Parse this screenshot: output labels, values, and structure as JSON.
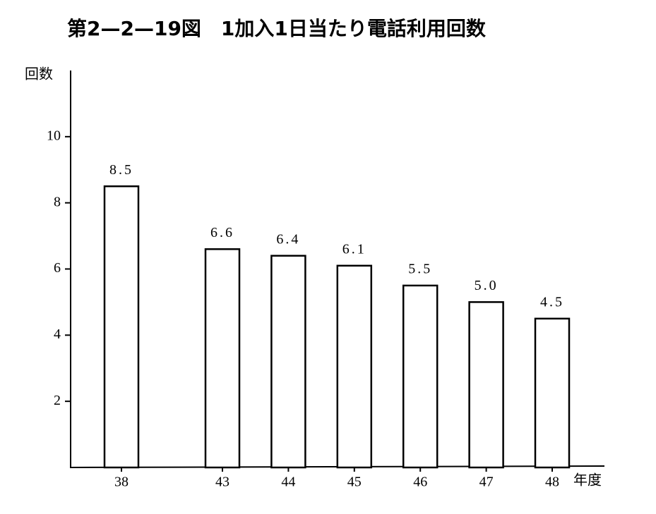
{
  "chart_data": {
    "type": "bar",
    "title": "第2—2—19図　1加入1日当たり電話利用回数",
    "y_label": "回数",
    "x_label": "年度",
    "categories": [
      "38",
      "43",
      "44",
      "45",
      "46",
      "47",
      "48"
    ],
    "values": [
      8.5,
      6.6,
      6.4,
      6.1,
      5.5,
      5.0,
      4.5
    ],
    "value_labels": [
      "8.5",
      "6.6",
      "6.4",
      "6.1",
      "5.5",
      "5.0",
      "4.5"
    ],
    "color": "#ffffff",
    "ylim": [
      0,
      12
    ],
    "yticks": [
      2,
      4,
      6,
      8,
      10
    ],
    "grid": false
  }
}
